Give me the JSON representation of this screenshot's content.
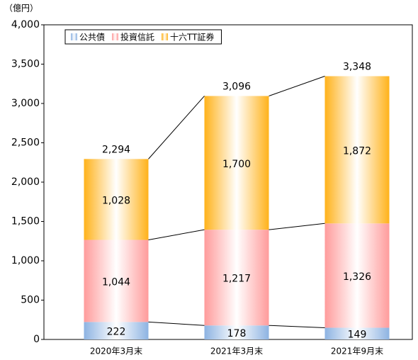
{
  "chart_data": {
    "type": "stacked-bar",
    "y_unit": "（億円）",
    "categories": [
      "2020年3月末",
      "2021年3月末",
      "2021年9月末"
    ],
    "series": [
      {
        "name": "公共債",
        "color": "#8db3e2",
        "values": [
          222,
          178,
          149
        ]
      },
      {
        "name": "投資信託",
        "color": "#ff9b9b",
        "values": [
          1044,
          1217,
          1326
        ],
        "value_labels": [
          "1,044",
          "1,217",
          "1,326"
        ]
      },
      {
        "name": "十六TT証券",
        "color": "#ffb21a",
        "values": [
          1028,
          1700,
          1872
        ],
        "value_labels": [
          "1,028",
          "1,700",
          "1,872"
        ]
      }
    ],
    "totals": {
      "values": [
        2294,
        3096,
        3348
      ],
      "value_labels": [
        "2,294",
        "3,096",
        "3,348"
      ]
    },
    "ylim": [
      0,
      4000
    ],
    "yticks": [
      0,
      500,
      {
        "value": 1000,
        "label": "1,000"
      },
      {
        "value": 1500,
        "label": "1,500"
      },
      {
        "value": 2000,
        "label": "2,000"
      },
      {
        "value": 2500,
        "label": "2,500"
      },
      {
        "value": 3000,
        "label": "3,000"
      },
      {
        "value": 3500,
        "label": "3,500"
      },
      {
        "value": 4000,
        "label": "4,000"
      }
    ],
    "legend": "top-left",
    "connector_lines": true
  }
}
